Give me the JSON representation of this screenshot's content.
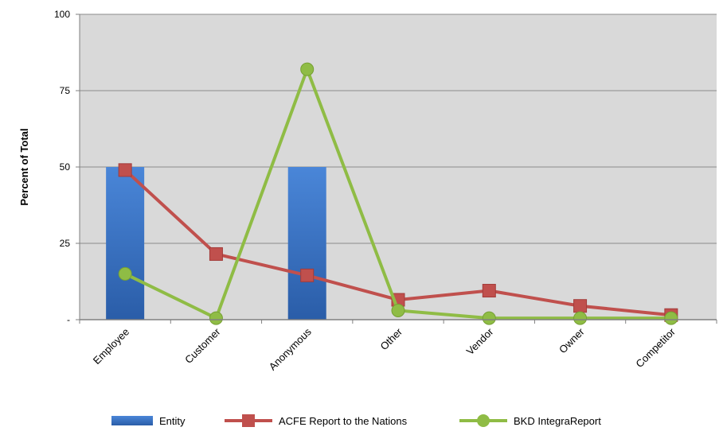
{
  "chart_data": {
    "type": "bar",
    "categories": [
      "Employee",
      "Customer",
      "Anonymous",
      "Other",
      "Vendor",
      "Owner",
      "Competitor"
    ],
    "series": [
      {
        "name": "Entity",
        "type": "bar",
        "color": "#3a75c4",
        "values": [
          50,
          0,
          50,
          0,
          0,
          0,
          0
        ]
      },
      {
        "name": "ACFE Report to the Nations",
        "type": "line",
        "marker": "square",
        "color": "#c0504d",
        "values": [
          49,
          21.5,
          14.5,
          6.5,
          9.5,
          4.5,
          1.5
        ]
      },
      {
        "name": "BKD IntegraReport",
        "type": "line",
        "marker": "circle",
        "color": "#8fbc45",
        "values": [
          15,
          0.5,
          82,
          3,
          0.5,
          0.5,
          0.5
        ]
      }
    ],
    "ylabel": "Percent of Total",
    "ylim": [
      0,
      100
    ],
    "yticks": [
      "-",
      "25",
      "50",
      "75",
      "100"
    ],
    "grid": true,
    "legend": "bottom"
  }
}
